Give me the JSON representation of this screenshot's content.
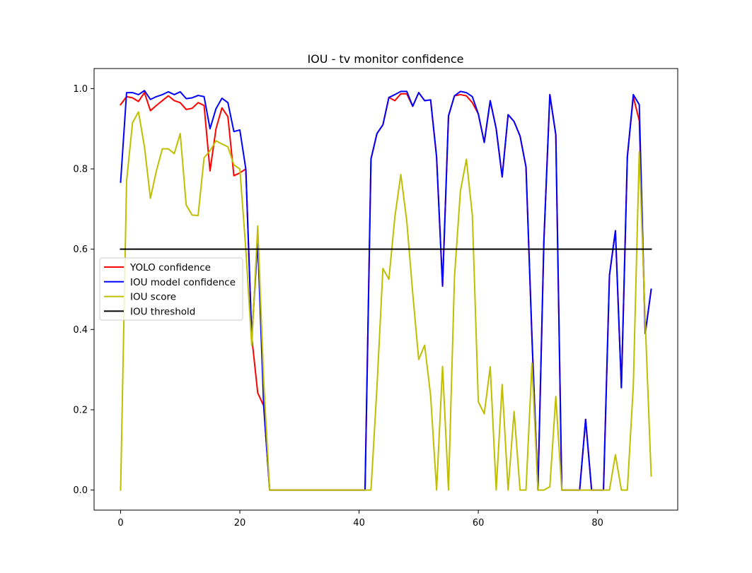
{
  "chart_data": {
    "type": "line",
    "title": "IOU - tv monitor confidence",
    "xlabel": "",
    "ylabel": "",
    "xlim": [
      -4.45,
      93.45
    ],
    "ylim": [
      -0.05,
      1.05
    ],
    "xticks": [
      0,
      20,
      40,
      60,
      80
    ],
    "yticks": [
      0.0,
      0.2,
      0.4,
      0.6,
      0.8,
      1.0
    ],
    "ytick_labels": [
      "0.0",
      "0.2",
      "0.4",
      "0.6",
      "0.8",
      "1.0"
    ],
    "grid": false,
    "legend_position": "center-left",
    "x": [
      0,
      1,
      2,
      3,
      4,
      5,
      6,
      7,
      8,
      9,
      10,
      11,
      12,
      13,
      14,
      15,
      16,
      17,
      18,
      19,
      20,
      21,
      22,
      23,
      24,
      25,
      26,
      27,
      28,
      29,
      30,
      31,
      32,
      33,
      34,
      35,
      36,
      37,
      38,
      39,
      40,
      41,
      42,
      43,
      44,
      45,
      46,
      47,
      48,
      49,
      50,
      51,
      52,
      53,
      54,
      55,
      56,
      57,
      58,
      59,
      60,
      61,
      62,
      63,
      64,
      65,
      66,
      67,
      68,
      69,
      70,
      71,
      72,
      73,
      74,
      75,
      76,
      77,
      78,
      79,
      80,
      81,
      82,
      83,
      84,
      85,
      86,
      87,
      88,
      89
    ],
    "series": [
      {
        "name": "YOLO confidence",
        "color": "#ff0000",
        "values": [
          0.96,
          0.98,
          0.977,
          0.968,
          0.99,
          0.945,
          0.958,
          0.97,
          0.982,
          0.97,
          0.965,
          0.948,
          0.951,
          0.965,
          0.958,
          0.795,
          0.9,
          0.952,
          0.93,
          0.783,
          0.79,
          0.8,
          0.38,
          0.242,
          0.21,
          0.0,
          0.0,
          0.0,
          0.0,
          0.0,
          0.0,
          0.0,
          0.0,
          0.0,
          0.0,
          0.0,
          0.0,
          0.0,
          0.0,
          0.0,
          0.0,
          0.0,
          0.825,
          0.888,
          0.91,
          0.978,
          0.97,
          0.987,
          0.987,
          0.956,
          0.99,
          0.97,
          0.972,
          0.83,
          0.508,
          0.932,
          0.982,
          0.985,
          0.982,
          0.965,
          0.937,
          0.866,
          0.97,
          0.9,
          0.78,
          0.935,
          0.918,
          0.882,
          0.805,
          0.38,
          0.0,
          0.62,
          0.985,
          0.885,
          0.0,
          0.0,
          0.0,
          0.0,
          0.176,
          0.0,
          0.0,
          0.0,
          0.535,
          0.646,
          0.255,
          0.83,
          0.98,
          0.92,
          0.39,
          0.5
        ]
      },
      {
        "name": "IOU model confidence",
        "color": "#0000ff",
        "values": [
          0.767,
          0.99,
          0.99,
          0.985,
          0.995,
          0.973,
          0.98,
          0.985,
          0.992,
          0.985,
          0.992,
          0.975,
          0.977,
          0.983,
          0.98,
          0.9,
          0.95,
          0.976,
          0.965,
          0.893,
          0.897,
          0.8,
          0.38,
          0.62,
          0.21,
          0.0,
          0.0,
          0.0,
          0.0,
          0.0,
          0.0,
          0.0,
          0.0,
          0.0,
          0.0,
          0.0,
          0.0,
          0.0,
          0.0,
          0.0,
          0.0,
          0.0,
          0.825,
          0.888,
          0.91,
          0.978,
          0.985,
          0.993,
          0.993,
          0.956,
          0.99,
          0.97,
          0.972,
          0.83,
          0.508,
          0.932,
          0.982,
          0.993,
          0.99,
          0.98,
          0.937,
          0.866,
          0.97,
          0.9,
          0.78,
          0.935,
          0.918,
          0.882,
          0.805,
          0.38,
          0.0,
          0.62,
          0.985,
          0.885,
          0.0,
          0.0,
          0.0,
          0.0,
          0.176,
          0.0,
          0.0,
          0.0,
          0.535,
          0.646,
          0.255,
          0.83,
          0.985,
          0.96,
          0.39,
          0.5
        ]
      },
      {
        "name": "IOU score",
        "color": "#bfbf00",
        "values": [
          0.0,
          0.77,
          0.915,
          0.942,
          0.855,
          0.727,
          0.795,
          0.85,
          0.85,
          0.838,
          0.888,
          0.71,
          0.685,
          0.684,
          0.828,
          0.845,
          0.87,
          0.862,
          0.855,
          0.81,
          0.8,
          0.6,
          0.36,
          0.658,
          0.27,
          0.0,
          0.0,
          0.0,
          0.0,
          0.0,
          0.0,
          0.0,
          0.0,
          0.0,
          0.0,
          0.0,
          0.0,
          0.0,
          0.0,
          0.0,
          0.0,
          0.0,
          0.0,
          0.257,
          0.552,
          0.525,
          0.68,
          0.786,
          0.67,
          0.49,
          0.325,
          0.361,
          0.235,
          0.0,
          0.308,
          0.0,
          0.53,
          0.745,
          0.824,
          0.685,
          0.22,
          0.19,
          0.307,
          0.0,
          0.263,
          0.0,
          0.196,
          0.0,
          0.0,
          0.316,
          0.0,
          0.0,
          0.008,
          0.233,
          0.0,
          0.0,
          0.0,
          0.0,
          0.0,
          0.0,
          0.0,
          0.0,
          0.0,
          0.088,
          0.0,
          0.0,
          0.26,
          0.843,
          0.42,
          0.035
        ]
      },
      {
        "name": "IOU threshold",
        "color": "#000000",
        "values": [
          0.6,
          0.6,
          0.6,
          0.6,
          0.6,
          0.6,
          0.6,
          0.6,
          0.6,
          0.6,
          0.6,
          0.6,
          0.6,
          0.6,
          0.6,
          0.6,
          0.6,
          0.6,
          0.6,
          0.6,
          0.6,
          0.6,
          0.6,
          0.6,
          0.6,
          0.6,
          0.6,
          0.6,
          0.6,
          0.6,
          0.6,
          0.6,
          0.6,
          0.6,
          0.6,
          0.6,
          0.6,
          0.6,
          0.6,
          0.6,
          0.6,
          0.6,
          0.6,
          0.6,
          0.6,
          0.6,
          0.6,
          0.6,
          0.6,
          0.6,
          0.6,
          0.6,
          0.6,
          0.6,
          0.6,
          0.6,
          0.6,
          0.6,
          0.6,
          0.6,
          0.6,
          0.6,
          0.6,
          0.6,
          0.6,
          0.6,
          0.6,
          0.6,
          0.6,
          0.6,
          0.6,
          0.6,
          0.6,
          0.6,
          0.6,
          0.6,
          0.6,
          0.6,
          0.6,
          0.6,
          0.6,
          0.6,
          0.6,
          0.6,
          0.6,
          0.6,
          0.6,
          0.6,
          0.6,
          0.6
        ]
      }
    ]
  }
}
